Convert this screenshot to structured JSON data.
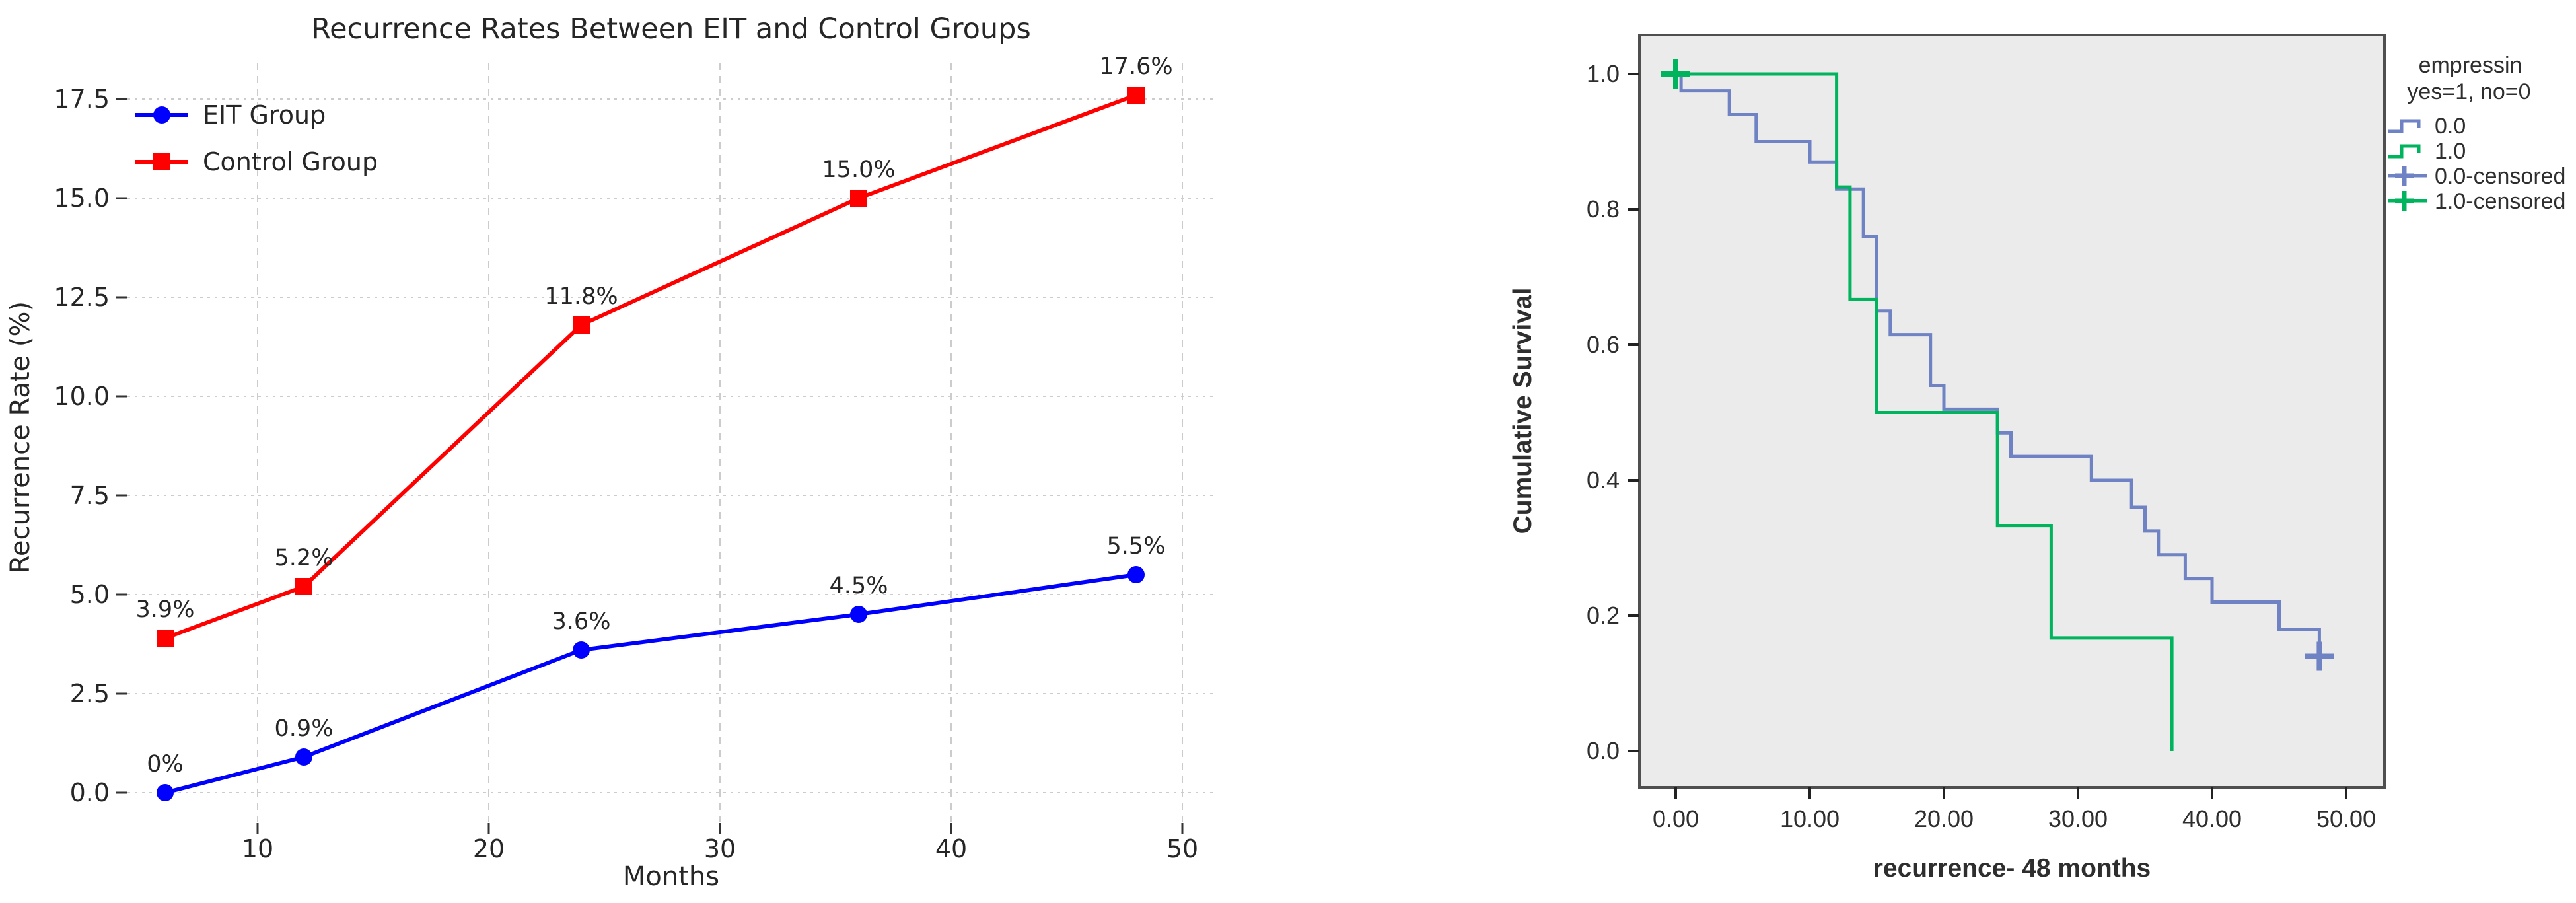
{
  "page": {
    "background": "#ffffff",
    "description": "Two side-by-side statistical figures"
  },
  "chart_data": [
    {
      "type": "line",
      "title": "Recurrence Rates Between EIT and Control Groups",
      "xlabel": "Months",
      "ylabel": "Recurrence Rate (%)",
      "x_tick_vals": [
        10,
        20,
        30,
        40,
        50
      ],
      "x_tick_labels": [
        "10",
        "20",
        "30",
        "40",
        "50"
      ],
      "y_tick_vals": [
        0,
        2.5,
        5,
        7.5,
        10,
        12.5,
        15,
        17.5
      ],
      "y_tick_labels": [
        "0.0",
        "2.5",
        "5.0",
        "7.5",
        "10.0",
        "12.5",
        "15.0",
        "17.5"
      ],
      "xlim": [
        4.4,
        51.4
      ],
      "ylim": [
        -0.75,
        18.4
      ],
      "grid": true,
      "grid_color": "#cccccc",
      "legend_position": "upper-left",
      "x": [
        6,
        12,
        24,
        36,
        48
      ],
      "series": [
        {
          "name": "EIT Group",
          "color": "#0000ff",
          "marker": "circle",
          "values": [
            0,
            0.9,
            3.6,
            4.5,
            5.5
          ],
          "point_labels": [
            "0%",
            "0.9%",
            "3.6%",
            "4.5%",
            "5.5%"
          ]
        },
        {
          "name": "Control Group",
          "color": "#ff0000",
          "marker": "square",
          "values": [
            3.9,
            5.2,
            11.8,
            15.0,
            17.6
          ],
          "point_labels": [
            "3.9%",
            "5.2%",
            "11.8%",
            "15.0%",
            "17.6%"
          ]
        }
      ]
    },
    {
      "type": "km_step",
      "title": "",
      "xlabel": "recurrence- 48 months",
      "ylabel": "Cumulative Survival",
      "x_tick_vals": [
        0,
        10,
        20,
        30,
        40,
        50
      ],
      "x_tick_labels": [
        "0.00",
        "10.00",
        "20.00",
        "30.00",
        "40.00",
        "50.00"
      ],
      "y_tick_vals": [
        0,
        0.2,
        0.4,
        0.6,
        0.8,
        1.0
      ],
      "y_tick_labels": [
        "0.0",
        "0.2",
        "0.4",
        "0.6",
        "0.8",
        "1.0"
      ],
      "xlim": [
        -2.7,
        52.9
      ],
      "ylim": [
        -0.05,
        1.06
      ],
      "grid": false,
      "plot_bg": "#ebebeb",
      "plot_border": "#4f4f4f",
      "legend": {
        "title_lines": [
          "empressin",
          "yes=1, no=0"
        ],
        "items": [
          {
            "label": "0.0",
            "color": "#6e82c4",
            "symbol": "step"
          },
          {
            "label": "1.0",
            "color": "#00b35d",
            "symbol": "step"
          },
          {
            "label": "0.0-censored",
            "color": "#6e82c4",
            "symbol": "plus"
          },
          {
            "label": "1.0-censored",
            "color": "#00b35d",
            "symbol": "plus"
          }
        ]
      },
      "series": [
        {
          "name": "0.0",
          "color": "#6e82c4",
          "x": [
            0,
            0.4,
            4,
            6,
            10,
            12,
            14,
            15,
            16,
            19,
            20,
            24,
            25,
            31,
            34,
            35,
            36,
            38,
            40,
            45,
            48
          ],
          "y": [
            1.0,
            0.975,
            0.94,
            0.9,
            0.87,
            0.83,
            0.76,
            0.65,
            0.615,
            0.54,
            0.505,
            0.47,
            0.435,
            0.4,
            0.36,
            0.325,
            0.29,
            0.255,
            0.22,
            0.18,
            0.14
          ],
          "censored": [
            [
              48,
              0.14
            ]
          ]
        },
        {
          "name": "1.0",
          "color": "#00b35d",
          "x": [
            0,
            12,
            13,
            15,
            24,
            28,
            37
          ],
          "y": [
            1.0,
            0.833,
            0.667,
            0.5,
            0.333,
            0.167,
            0.0
          ],
          "censored": [
            [
              0,
              1.0
            ]
          ]
        }
      ]
    }
  ]
}
